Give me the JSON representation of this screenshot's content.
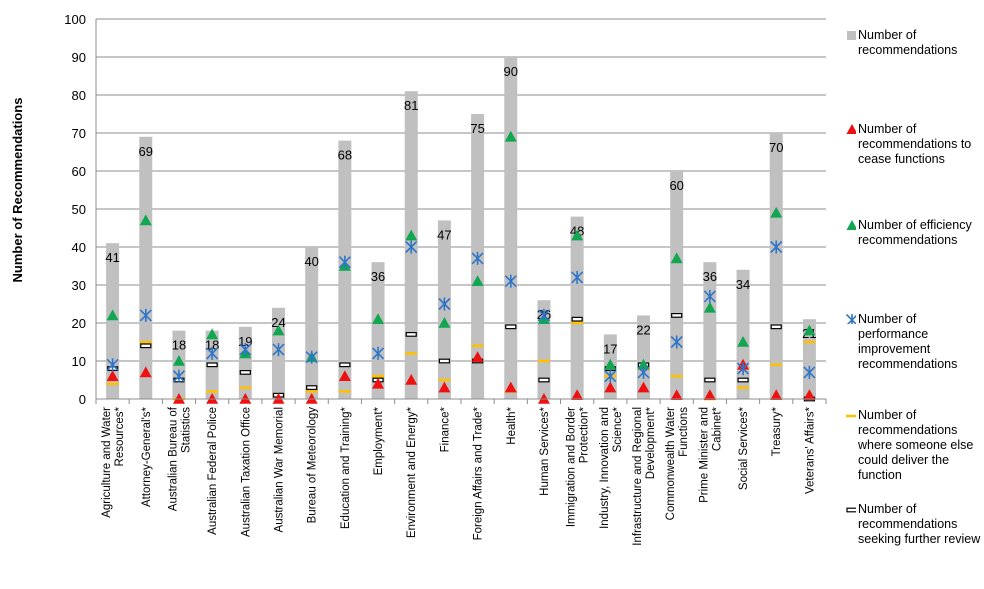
{
  "chart_data": {
    "type": "bar",
    "ylabel": "Number of Recommendations",
    "ylim": [
      0,
      100
    ],
    "yticks": [
      0,
      10,
      20,
      30,
      40,
      50,
      60,
      70,
      80,
      90,
      100
    ],
    "categories": [
      "Agriculture and Water Resources*",
      "Attorney-General's*",
      "Australian Bureau of Statistics",
      "Australian Federal Police",
      "Australian Taxation Office",
      "Australian War Memorial",
      "Bureau of Meteorology",
      "Education and Training*",
      "Employment*",
      "Environment and Energy*",
      "Finance*",
      "Foreign Affairs and Trade*",
      "Health*",
      "Human Services*",
      "Immigration and Border Protection*",
      "Industry, Innovation and Science*",
      "Infrastructure and Regional Development*",
      "Commonwealth Water Functions",
      "Prime Minister and Cabinet*",
      "Social Services*",
      "Treasury*",
      "Veterans' Affairs*"
    ],
    "series": [
      {
        "name": "Number of recommendations",
        "marker": "bar",
        "color": "#c0c0c0",
        "values": [
          41,
          69,
          18,
          18,
          19,
          24,
          40,
          68,
          36,
          81,
          47,
          75,
          90,
          26,
          48,
          17,
          22,
          60,
          36,
          34,
          70,
          21
        ]
      },
      {
        "name": "Number of recommendations to cease functions",
        "marker": "triangle",
        "color": "#ee1111",
        "values": [
          6,
          7,
          0,
          0,
          0,
          0,
          0,
          6,
          4,
          5,
          3,
          11,
          3,
          0,
          1,
          3,
          3,
          1,
          1,
          9,
          1,
          1
        ]
      },
      {
        "name": "Number of efficiency recommendations",
        "marker": "triangle",
        "color": "#11a650",
        "values": [
          22,
          47,
          10,
          17,
          12,
          18,
          11,
          35,
          21,
          43,
          20,
          31,
          69,
          21,
          43,
          9,
          9,
          37,
          24,
          15,
          49,
          18
        ]
      },
      {
        "name": "Number of performance improvement recommendations",
        "marker": "asterisk",
        "color": "#2e75c8",
        "values": [
          9,
          22,
          6,
          12,
          13,
          13,
          11,
          36,
          12,
          40,
          25,
          37,
          31,
          22,
          32,
          6,
          7,
          15,
          27,
          8,
          40,
          7
        ]
      },
      {
        "name": "Number of recommendations where someone else could deliver the function",
        "marker": "dash",
        "color": "#ffc000",
        "values": [
          4,
          15,
          0,
          2,
          3,
          1,
          2,
          2,
          6,
          12,
          5,
          14,
          2,
          10,
          20,
          6,
          8,
          6,
          0,
          3,
          9,
          15
        ]
      },
      {
        "name": "Number of recommendations seeking further review",
        "marker": "box",
        "color": "#000000",
        "values": [
          8,
          14,
          5,
          9,
          7,
          1,
          3,
          9,
          5,
          17,
          10,
          10,
          19,
          5,
          21,
          8,
          9,
          22,
          5,
          5,
          19,
          0
        ]
      }
    ],
    "data_labels": [
      "41",
      "69",
      "18",
      "18",
      "19",
      "24",
      "40",
      "68",
      "36",
      "81",
      "47",
      "75",
      "90",
      "26",
      "48",
      "17",
      "22",
      "60",
      "36",
      "34",
      "70",
      "21"
    ],
    "grid": true,
    "legend_position": "right"
  }
}
